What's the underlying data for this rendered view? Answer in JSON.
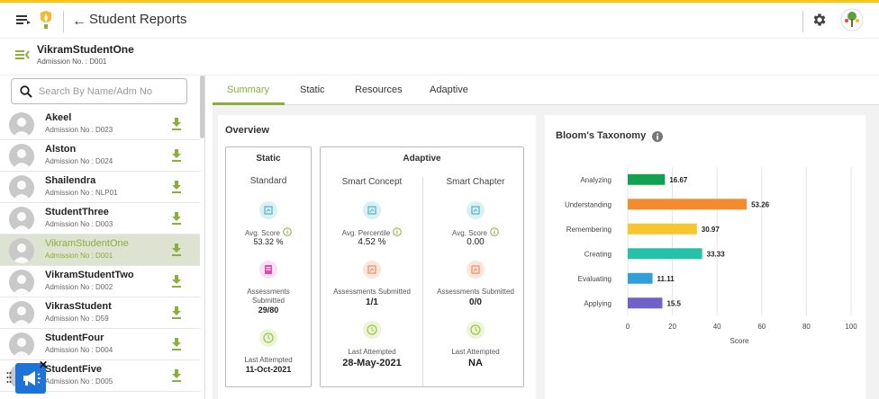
{
  "header": {
    "title": "Student Reports"
  },
  "student": {
    "name": "VikramStudentOne",
    "admission": "Admission No. : D001"
  },
  "search": {
    "placeholder": "Search By Name/Adm No"
  },
  "students": [
    {
      "name": "Akeel",
      "adm": "Admission No : D023"
    },
    {
      "name": "Alston",
      "adm": "Admission No : D024"
    },
    {
      "name": "Shailendra",
      "adm": "Admission No : NLP01"
    },
    {
      "name": "StudentThree",
      "adm": "Admission No : D003"
    },
    {
      "name": "VikramStudentOne",
      "adm": "Admission No : D001"
    },
    {
      "name": "VikramStudentTwo",
      "adm": "Admission No : D002"
    },
    {
      "name": "VikrasStudent",
      "adm": "Admission No : D59"
    },
    {
      "name": "StudentFour",
      "adm": "Admission No : D004"
    },
    {
      "name": "StudentFive",
      "adm": "Admission No : D005"
    }
  ],
  "tabs": [
    {
      "label": "Summary"
    },
    {
      "label": "Static"
    },
    {
      "label": "Resources"
    },
    {
      "label": "Adaptive"
    }
  ],
  "overview": {
    "title": "Overview",
    "static": {
      "title": "Static",
      "standard": "Standard",
      "avg_score_label": "Avg. Score",
      "avg_score": "53.32 %",
      "assess_label1": "Assessments",
      "assess_label2": "Submitted",
      "assess_value": "29/80",
      "last_label": "Last Attempted",
      "last_value": "11-Oct-2021"
    },
    "adaptive": {
      "title": "Adaptive",
      "smart_concept": {
        "head": "Smart Concept",
        "metric_label": "Avg. Percentile",
        "metric_value": "4.52 %",
        "assess_label": "Assessments Submitted",
        "assess_value": "1/1",
        "last_label": "Last Attempted",
        "last_value": "28-May-2021"
      },
      "smart_chapter": {
        "head": "Smart Chapter",
        "metric_label": "Avg. Score",
        "metric_value": "0.00",
        "assess_label": "Assessments Submitted",
        "assess_value": "0/0",
        "last_label": "Last Attempted",
        "last_value": "NA"
      }
    }
  },
  "bloom": {
    "title": "Bloom's Taxonomy"
  },
  "chart_data": {
    "type": "bar",
    "orientation": "horizontal",
    "title": "Bloom's Taxonomy",
    "xlabel": "Score",
    "ylabel": "",
    "xlim": [
      0,
      100
    ],
    "xticks": [
      0,
      20,
      40,
      60,
      80,
      100
    ],
    "grid": true,
    "categories": [
      "Analyzing",
      "Understanding",
      "Remembering",
      "Creating",
      "Evaluating",
      "Applying"
    ],
    "values": [
      16.67,
      53.26,
      30.97,
      33.33,
      11.11,
      15.5
    ],
    "value_labels": [
      "16.67",
      "53.26",
      "30.97",
      "33.33",
      "11.11",
      "15.5"
    ],
    "colors": [
      "#12a150",
      "#f58a2e",
      "#f7c62f",
      "#25c2a8",
      "#31a0d8",
      "#7060c9"
    ]
  }
}
